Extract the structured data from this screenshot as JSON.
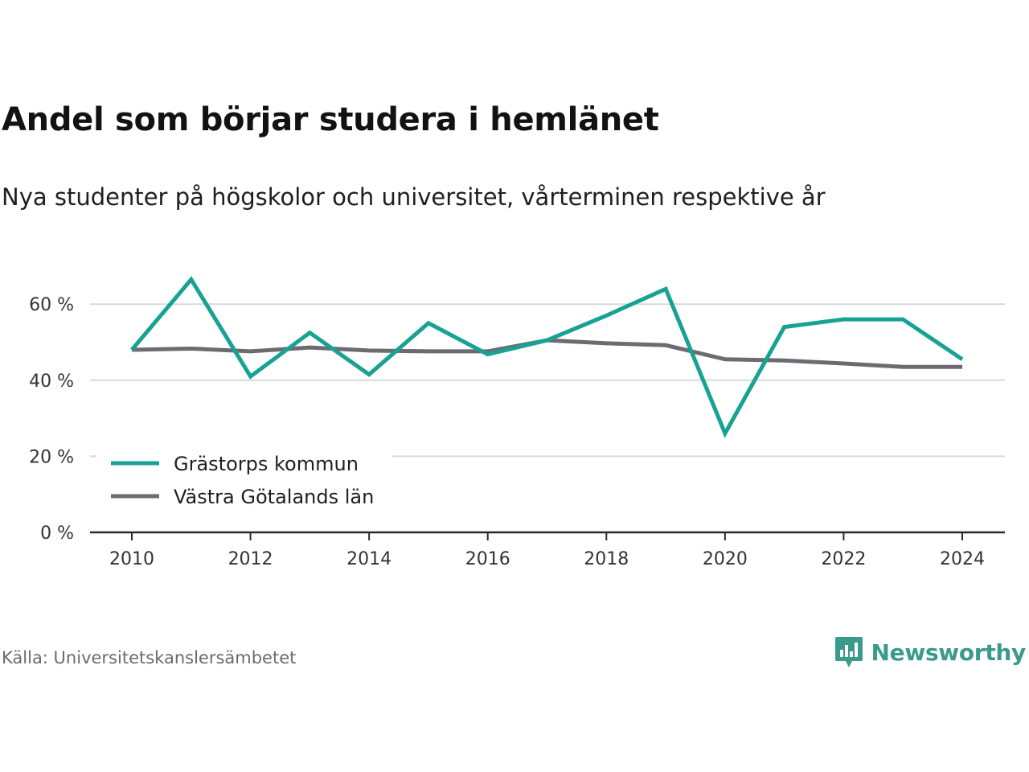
{
  "header": {
    "title": "Andel som börjar studera i hemlänet",
    "subtitle": "Nya studenter på högskolor och universitet, vårterminen respektive år"
  },
  "footer": {
    "source": "Källa: Universitetskanslersämbetet",
    "brand_name": "Newsworthy",
    "brand_icon": "bar-chart-speech-bubble-icon",
    "brand_color": "#3a9a8c"
  },
  "chart_data": {
    "type": "line",
    "x": [
      2010,
      2011,
      2012,
      2013,
      2014,
      2015,
      2016,
      2017,
      2018,
      2019,
      2020,
      2021,
      2022,
      2023,
      2024
    ],
    "x_tick_labels": [
      "2010",
      "2012",
      "2014",
      "2016",
      "2018",
      "2020",
      "2022",
      "2024"
    ],
    "x_ticks": [
      2010,
      2012,
      2014,
      2016,
      2018,
      2020,
      2022,
      2024
    ],
    "y_ticks": [
      0,
      20,
      40,
      60
    ],
    "y_tick_labels": [
      "0 %",
      "20 %",
      "40 %",
      "60 %"
    ],
    "ylim": [
      0,
      68
    ],
    "grid": "horizontal",
    "legend_position": "bottom-left",
    "series": [
      {
        "name": "Grästorps kommun",
        "color": "#17a294",
        "values": [
          48,
          66.5,
          41,
          52.5,
          41.5,
          55,
          46.8,
          50.5,
          57,
          64,
          26,
          54,
          56,
          56,
          45.5
        ]
      },
      {
        "name": "Västra Götalands län",
        "color": "#6c6b72",
        "values": [
          48,
          48.3,
          47.6,
          48.6,
          47.8,
          47.6,
          47.6,
          50.5,
          49.7,
          49.2,
          45.5,
          45.2,
          44.4,
          43.5,
          43.5
        ]
      }
    ]
  }
}
